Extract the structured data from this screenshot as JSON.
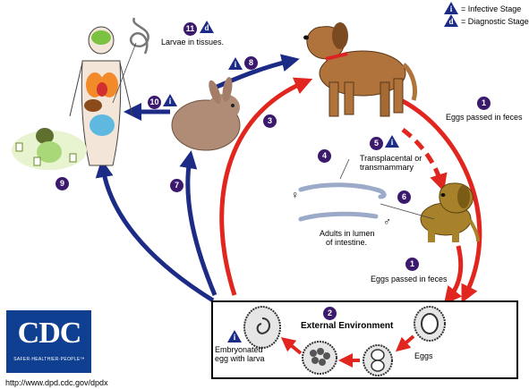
{
  "legend": {
    "infective_symbol": "i",
    "infective_label": "= Infective Stage",
    "diagnostic_symbol": "d",
    "diagnostic_label": "= Diagnostic Stage"
  },
  "steps": {
    "s1": "1",
    "s1b": "1",
    "s2": "2",
    "s3": "3",
    "s4": "4",
    "s5": "5",
    "s6": "6",
    "s7": "7",
    "s8": "8",
    "s9": "9",
    "s10": "10",
    "s11": "11"
  },
  "labels": {
    "larvae_tissues": "Larvae in tissues.",
    "eggs_feces_top": "Eggs passed in feces",
    "eggs_feces_bottom": "Eggs passed in feces",
    "transplacental_1": "Transplacental or",
    "transplacental_2": "transmammary",
    "adults_1": "Adults in lumen",
    "adults_2": "of intestine.",
    "female_symbol": "♀",
    "male_symbol": "♂",
    "external_environment": "External Environment",
    "embryonated_1": "Embryonated",
    "embryonated_2": "egg with larva",
    "eggs": "Eggs"
  },
  "logo": {
    "text": "CDC",
    "subtext": "SAFER·HEALTHIER·PEOPLE™"
  },
  "url": "http://www.dpd.cdc.gov/dpdx",
  "colors": {
    "red_arrow": "#e0261e",
    "blue_arrow": "#1c2b86",
    "step_circle": "#3b1a6e",
    "cdc_blue": "#0f3f90"
  }
}
